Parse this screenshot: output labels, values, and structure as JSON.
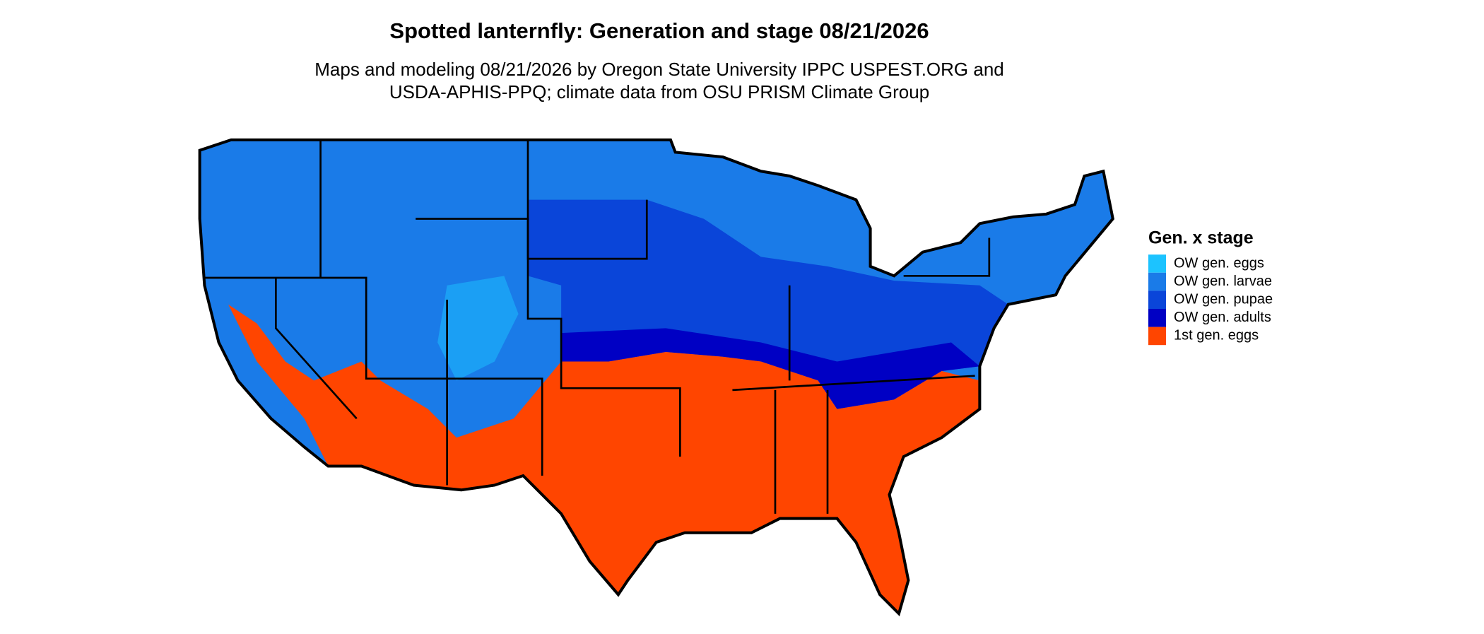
{
  "header": {
    "title": "Spotted lanternfly: Generation and stage 08/21/2026",
    "subtitle_lines": [
      "Maps and modeling 08/21/2026 by Oregon State University IPPC USPEST.ORG and",
      "USDA-APHIS-PPQ; climate data from OSU PRISM Climate Group"
    ]
  },
  "legend": {
    "title": "Gen. x stage",
    "items": [
      {
        "label": "OW gen. eggs",
        "color": "#1cc3ff"
      },
      {
        "label": "OW gen. larvae",
        "color": "#1a7be8"
      },
      {
        "label": "OW gen. pupae",
        "color": "#0a45d9"
      },
      {
        "label": "OW gen. adults",
        "color": "#0000c4"
      },
      {
        "label": "1st gen. eggs",
        "color": "#ff4500"
      }
    ]
  }
}
